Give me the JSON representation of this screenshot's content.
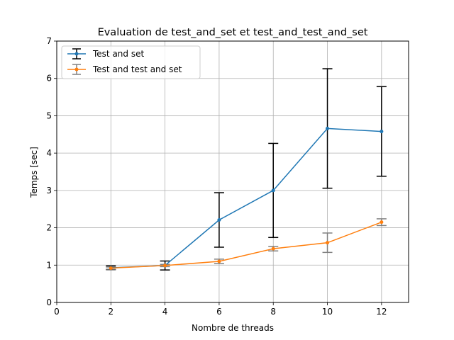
{
  "chart_data": {
    "type": "line",
    "title": "Evaluation de test_and_set et test_and_test_and_set",
    "xlabel": "Nombre de threads",
    "ylabel": "Temps [sec]",
    "xlim": [
      0,
      13
    ],
    "ylim": [
      0,
      7
    ],
    "xticks": [
      0,
      2,
      4,
      6,
      8,
      10,
      12
    ],
    "yticks": [
      0,
      1,
      2,
      3,
      4,
      5,
      6,
      7
    ],
    "grid": true,
    "legend_position": "upper-left",
    "x": [
      2,
      4,
      6,
      8,
      10,
      12
    ],
    "series": [
      {
        "name": "Test and set",
        "color": "#1f77b4",
        "errorbar_color": "#000000",
        "values": [
          0.93,
          0.99,
          2.21,
          3.0,
          4.66,
          4.58
        ],
        "error": [
          0.05,
          0.12,
          0.73,
          1.26,
          1.6,
          1.2
        ]
      },
      {
        "name": "Test and test and set",
        "color": "#ff7f0e",
        "errorbar_color": "#808080",
        "values": [
          0.92,
          0.99,
          1.1,
          1.44,
          1.6,
          2.15
        ],
        "error": [
          0.03,
          0.03,
          0.06,
          0.06,
          0.26,
          0.09
        ]
      }
    ]
  }
}
